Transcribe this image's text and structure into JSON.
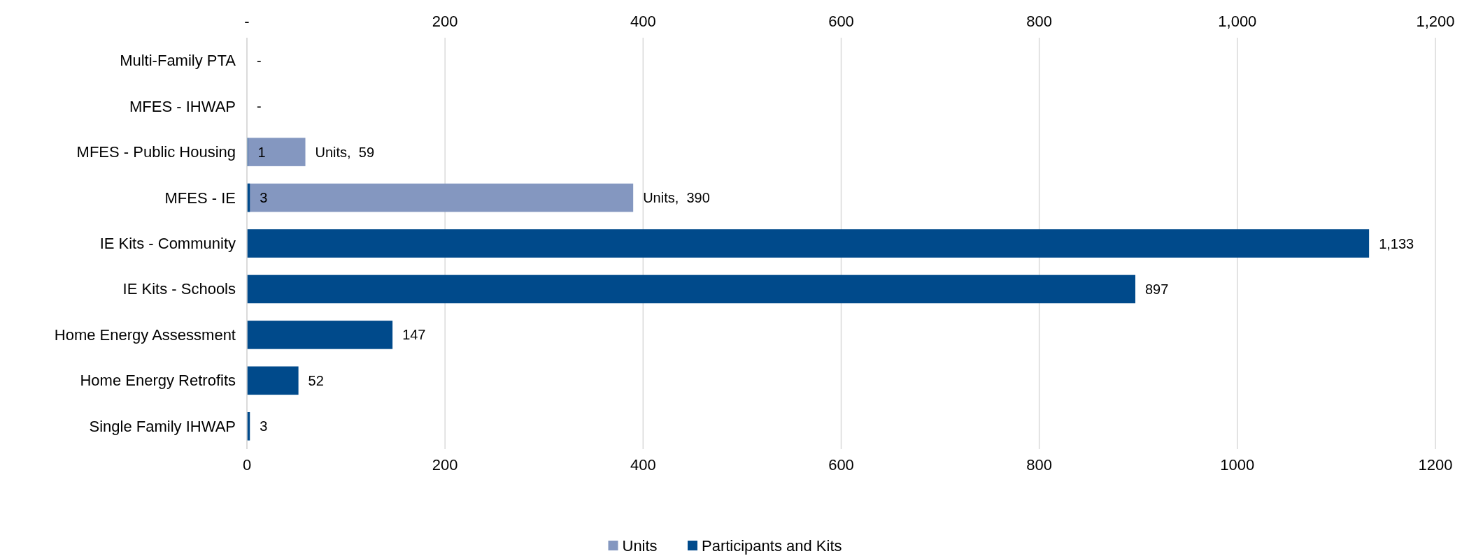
{
  "chart_data": {
    "type": "bar",
    "orientation": "horizontal",
    "categories": [
      "Multi-Family PTA",
      "MFES - IHWAP",
      "MFES - Public Housing",
      "MFES - IE",
      "IE Kits - Community",
      "IE Kits - Schools",
      "Home Energy Assessment",
      "Home Energy Retrofits",
      "Single Family IHWAP"
    ],
    "series": [
      {
        "name": "Units",
        "color": "#8497c0",
        "axis": "x2",
        "values": [
          0,
          0,
          59,
          390,
          null,
          null,
          null,
          null,
          null
        ],
        "value_labels": [
          "-",
          "-",
          "Units,  59",
          "Units,  390",
          null,
          null,
          null,
          null,
          null
        ]
      },
      {
        "name": "Participants and Kits",
        "color": "#004a8b",
        "values": [
          null,
          null,
          1,
          3,
          1133,
          897,
          147,
          52,
          3
        ],
        "value_labels": [
          null,
          null,
          "1",
          "3",
          "1,133",
          "897",
          "147",
          "52",
          "3"
        ]
      }
    ],
    "xlim": [
      0,
      1200
    ],
    "xticks": [
      0,
      200,
      400,
      600,
      800,
      1000,
      1200
    ],
    "x2lim": [
      0,
      1200
    ],
    "x2ticks": [
      {
        "value": 0,
        "label": "-"
      },
      200,
      400,
      600,
      800,
      {
        "value": 1000,
        "label": "1,000"
      },
      {
        "value": 1200,
        "label": "1,200"
      }
    ],
    "grid": "x",
    "legend": "bottom"
  }
}
